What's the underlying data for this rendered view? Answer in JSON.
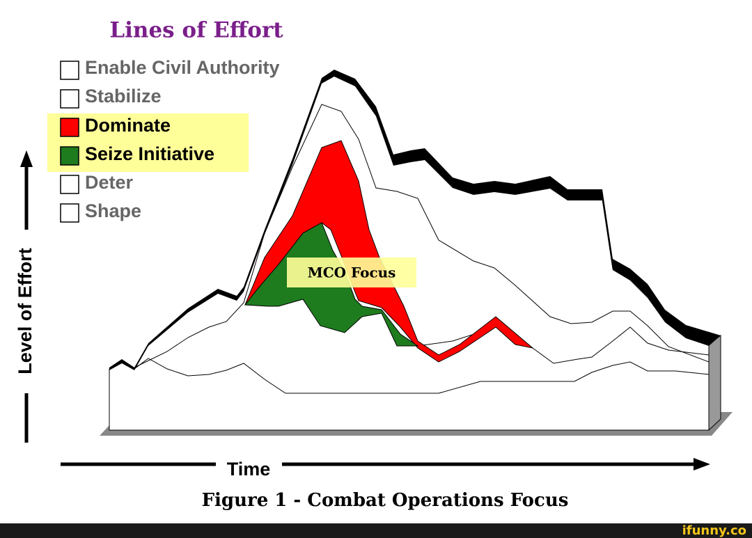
{
  "title": "Lines of Effort",
  "legend": [
    "Enable Civil Authority",
    "Stabilize",
    "Dominate",
    "Seize Initiative",
    "Deter",
    "Shape"
  ],
  "annotation": "MCO Focus",
  "y_axis_label": "Level of Effort",
  "x_axis_label": "Time",
  "caption": "Figure 1 - Combat Operations Focus",
  "watermark": "ifunny.co"
}
